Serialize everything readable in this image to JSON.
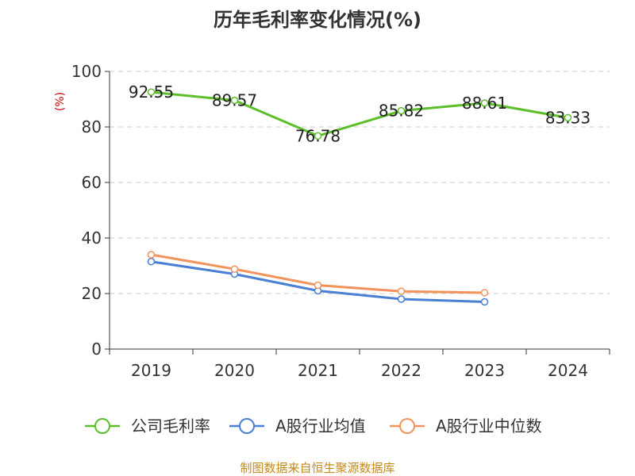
{
  "chart_data": {
    "type": "line",
    "title": "历年毛利率变化情况(%)",
    "ylabel": "(%)",
    "xlabel": "",
    "categories": [
      "2019",
      "2020",
      "2021",
      "2022",
      "2023",
      "2024"
    ],
    "ylim": [
      0,
      100
    ],
    "yticks": [
      0,
      20,
      40,
      60,
      80,
      100
    ],
    "grid": true,
    "legend_position": "bottom",
    "series": [
      {
        "name": "公司毛利率",
        "color": "#5cbf2a",
        "values": [
          92.55,
          89.57,
          76.78,
          85.82,
          88.61,
          83.33
        ],
        "data_labels": [
          "92.55",
          "89.57",
          "76.78",
          "85.82",
          "88.61",
          "83.33"
        ]
      },
      {
        "name": "A股行业均值",
        "color": "#4a7fd4",
        "values": [
          31.5,
          27.0,
          21.0,
          18.0,
          17.0,
          null
        ]
      },
      {
        "name": "A股行业中位数",
        "color": "#f2935c",
        "values": [
          34.0,
          28.8,
          23.0,
          20.8,
          20.3,
          null
        ]
      }
    ]
  },
  "source": "制图数据来自恒生聚源数据库"
}
